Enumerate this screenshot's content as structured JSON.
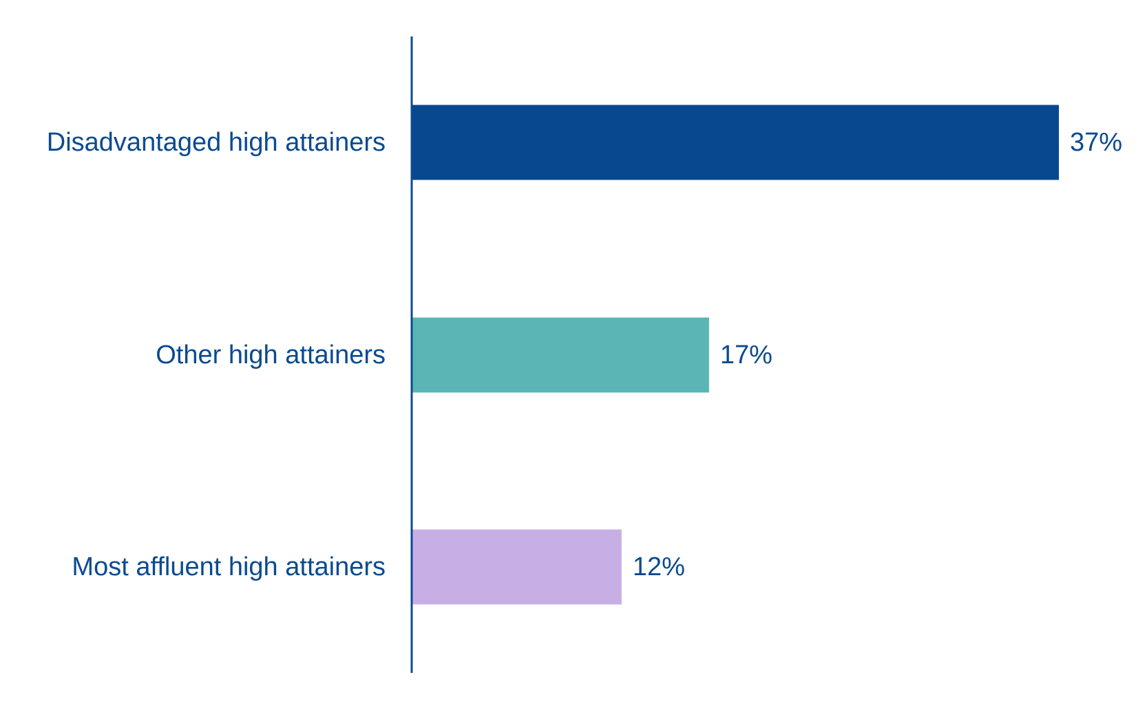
{
  "chart_data": {
    "type": "bar",
    "orientation": "horizontal",
    "categories": [
      "Disadvantaged high attainers",
      "Other high attainers",
      "Most affluent high attainers"
    ],
    "values": [
      37,
      17,
      12
    ],
    "value_labels": [
      "37%",
      "17%",
      "12%"
    ],
    "colors": [
      "#08488f",
      "#5bb5b5",
      "#c7afe6"
    ],
    "axis_color": "#0a4a91",
    "label_color": "#0a4a91",
    "xlim": [
      0,
      37
    ],
    "grid": false,
    "legend": "none",
    "title": "",
    "xlabel": "",
    "ylabel": ""
  }
}
